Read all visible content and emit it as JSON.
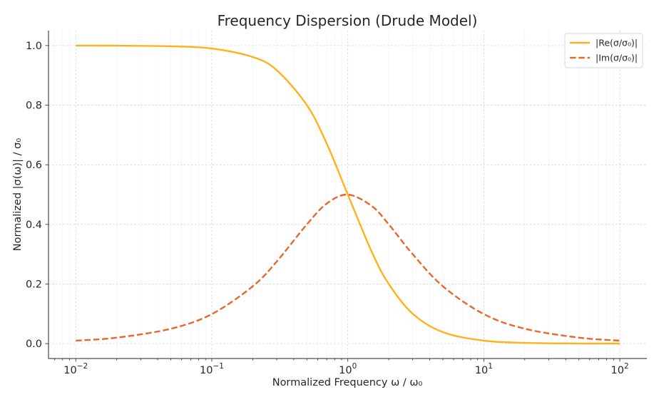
{
  "chart_data": {
    "type": "line",
    "title": "Frequency Dispersion (Drude Model)",
    "xlabel": "Normalized Frequency ω / ω₀",
    "ylabel": "Normalized |σ(ω)| / σ₀",
    "xscale": "log",
    "xlim": [
      0.0063,
      158
    ],
    "ylim": [
      -0.05,
      1.05
    ],
    "x_ticks": [
      {
        "value": 0.01,
        "base": "10",
        "exp": "−2"
      },
      {
        "value": 0.1,
        "base": "10",
        "exp": "−1"
      },
      {
        "value": 1,
        "base": "10",
        "exp": "0"
      },
      {
        "value": 10,
        "base": "10",
        "exp": "1"
      },
      {
        "value": 100,
        "base": "10",
        "exp": "2"
      }
    ],
    "y_ticks": [
      {
        "value": 0.0,
        "label": "0.0"
      },
      {
        "value": 0.2,
        "label": "0.2"
      },
      {
        "value": 0.4,
        "label": "0.4"
      },
      {
        "value": 0.6,
        "label": "0.6"
      },
      {
        "value": 0.8,
        "label": "0.8"
      },
      {
        "value": 1.0,
        "label": "1.0"
      }
    ],
    "grid": true,
    "legend_position": "top-right",
    "series": [
      {
        "name": "|Re(σ/σ₀)|",
        "color": "#ffb11b",
        "style": "solid",
        "x": [
          0.01,
          0.02,
          0.05,
          0.1,
          0.2,
          0.3,
          0.5,
          0.7,
          1,
          1.5,
          2,
          3,
          5,
          10,
          20,
          50,
          100
        ],
        "y": [
          1.0,
          0.9996,
          0.9975,
          0.9901,
          0.9615,
          0.9174,
          0.8,
          0.6711,
          0.5,
          0.3077,
          0.2,
          0.1,
          0.0385,
          0.0099,
          0.0025,
          0.0004,
          0.0001
        ]
      },
      {
        "name": "|Im(σ/σ₀)|",
        "color": "#e8672a",
        "style": "dashed",
        "x": [
          0.01,
          0.02,
          0.05,
          0.1,
          0.2,
          0.3,
          0.5,
          0.7,
          1,
          1.5,
          2,
          3,
          5,
          10,
          20,
          50,
          100
        ],
        "y": [
          0.01,
          0.02,
          0.0499,
          0.099,
          0.1923,
          0.2752,
          0.4,
          0.4698,
          0.5,
          0.4615,
          0.4,
          0.3,
          0.1923,
          0.099,
          0.0499,
          0.02,
          0.01
        ]
      }
    ]
  }
}
